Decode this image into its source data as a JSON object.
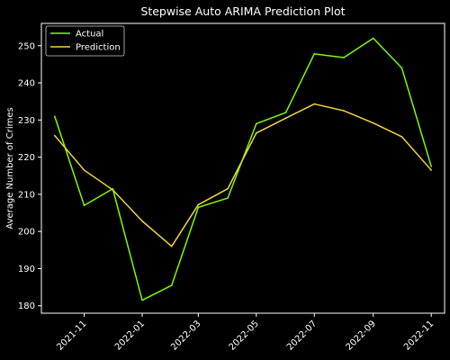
{
  "chart_data": {
    "type": "line",
    "title": "Stepwise Auto ARIMA Prediction Plot",
    "xlabel": "",
    "ylabel": "Average Number of Crimes",
    "x": [
      "2021-10",
      "2021-11",
      "2021-12",
      "2022-01",
      "2022-02",
      "2022-03",
      "2022-04",
      "2022-05",
      "2022-06",
      "2022-07",
      "2022-08",
      "2022-09",
      "2022-10",
      "2022-11"
    ],
    "x_ticks": [
      "2021-11",
      "2022-01",
      "2022-03",
      "2022-05",
      "2022-07",
      "2022-09",
      "2022-11"
    ],
    "y_ticks": [
      180,
      190,
      200,
      210,
      220,
      230,
      240,
      250
    ],
    "ylim": [
      178,
      256
    ],
    "xlim": [
      "2021-09-17",
      "2022-11-15"
    ],
    "grid": false,
    "legend_position": "top-left",
    "series": [
      {
        "name": "Actual",
        "color": "#7CFC00",
        "values": [
          231,
          207,
          211.5,
          181.5,
          185.5,
          206.5,
          209,
          229,
          232,
          247.8,
          246.8,
          252,
          244,
          217.5
        ]
      },
      {
        "name": "Prediction",
        "color": "#F2D63A",
        "values": [
          225.8,
          216.5,
          211.2,
          202.8,
          196,
          207.2,
          211.5,
          226.5,
          230.5,
          234.3,
          232.5,
          229.2,
          225.5,
          216.5
        ]
      }
    ]
  }
}
